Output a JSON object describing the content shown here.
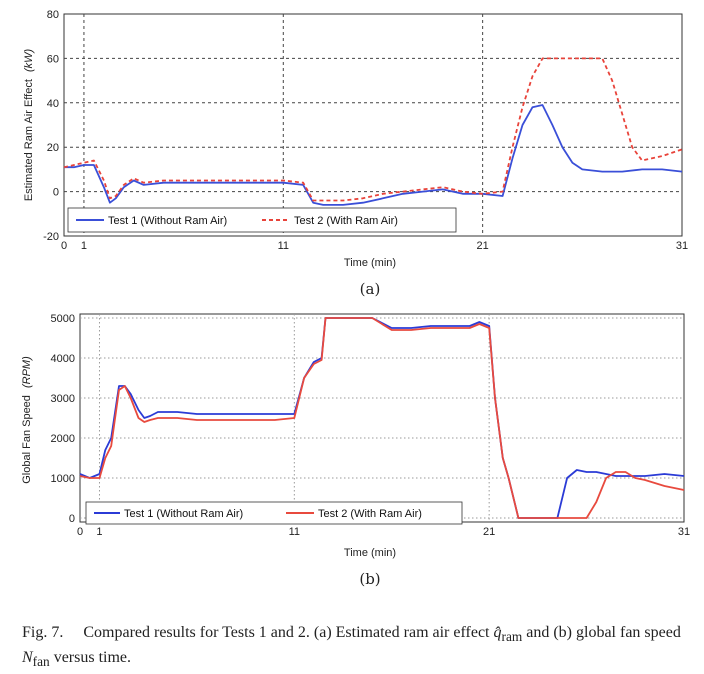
{
  "chart_data": [
    {
      "type": "line",
      "panel_label": "(a)",
      "xlabel": "Time (min)",
      "ylabel": "Estimated Ram Air Effect",
      "ylabel_unit": "(kW)",
      "xlim": [
        0,
        31
      ],
      "ylim": [
        -20,
        80
      ],
      "xticks": [
        0,
        1,
        11,
        21,
        31
      ],
      "yticks": [
        -20,
        0,
        20,
        40,
        60,
        80
      ],
      "grid": true,
      "legend": "bottom-left",
      "series": [
        {
          "name": "Test 1 (Without Ram Air)",
          "color": "#3a4fd8",
          "style": "solid",
          "x": [
            0,
            0.5,
            1,
            1.5,
            2,
            2.3,
            2.6,
            3,
            3.5,
            4,
            5,
            6,
            8,
            10,
            11,
            12,
            12.5,
            13,
            14,
            15,
            16,
            17,
            18,
            19,
            20,
            21,
            22,
            22.5,
            23,
            23.5,
            24,
            24.5,
            25,
            25.5,
            26,
            27,
            28,
            29,
            30,
            31
          ],
          "values": [
            11,
            11,
            12,
            12,
            2,
            -5,
            -3,
            2,
            5,
            3,
            4,
            4,
            4,
            4,
            4,
            3,
            -5,
            -6,
            -6,
            -5,
            -3,
            -1,
            0,
            1,
            -1,
            -1,
            -2,
            15,
            30,
            38,
            39,
            30,
            20,
            13,
            10,
            9,
            9,
            10,
            10,
            9
          ]
        },
        {
          "name": "Test 2 (With Ram Air)",
          "color": "#e8433a",
          "style": "dashed",
          "x": [
            0,
            0.5,
            1,
            1.5,
            2,
            2.3,
            2.6,
            3,
            3.5,
            4,
            5,
            6,
            8,
            10,
            11,
            12,
            12.5,
            13,
            14,
            15,
            16,
            17,
            18,
            19,
            20,
            21,
            22,
            22.5,
            23,
            23.5,
            24,
            24.5,
            25,
            26,
            27,
            27.5,
            28,
            28.5,
            29,
            30,
            31
          ],
          "values": [
            11,
            12,
            13,
            14,
            5,
            -3,
            -2,
            3,
            6,
            4,
            5,
            5,
            5,
            5,
            5,
            4,
            -4,
            -4,
            -4,
            -3,
            -1,
            0,
            1,
            2,
            0,
            -1,
            0,
            20,
            38,
            52,
            60,
            60,
            60,
            60,
            60,
            50,
            35,
            20,
            14,
            16,
            19
          ]
        }
      ]
    },
    {
      "type": "line",
      "panel_label": "(b)",
      "xlabel": "Time (min)",
      "ylabel": "Global Fan Speed",
      "ylabel_unit": "(RPM)",
      "xlim": [
        0,
        31
      ],
      "ylim": [
        -100,
        5100
      ],
      "xticks": [
        0,
        1,
        11,
        21,
        31
      ],
      "yticks": [
        0,
        1000,
        2000,
        3000,
        4000,
        5000
      ],
      "grid": true,
      "legend": "bottom-left",
      "series": [
        {
          "name": "Test 1 (Without Ram Air)",
          "color": "#2b3bd6",
          "style": "solid",
          "x": [
            0,
            0.5,
            1,
            1.3,
            1.6,
            2,
            2.3,
            2.6,
            3,
            3.3,
            3.6,
            4,
            5,
            6,
            8,
            10,
            11,
            11.5,
            12,
            12.4,
            12.6,
            13,
            14,
            15,
            16,
            17,
            18,
            19,
            20,
            20.5,
            21,
            21.3,
            21.7,
            22,
            22.5,
            23,
            23.5,
            24,
            24.5,
            25,
            25.5,
            26,
            26.5,
            27,
            27.5,
            28,
            29,
            30,
            31
          ],
          "values": [
            1100,
            1000,
            1100,
            1700,
            2000,
            3300,
            3300,
            3100,
            2700,
            2500,
            2550,
            2650,
            2650,
            2600,
            2600,
            2600,
            2600,
            3500,
            3900,
            4000,
            5000,
            5000,
            5000,
            5000,
            4750,
            4750,
            4800,
            4800,
            4800,
            4900,
            4800,
            3000,
            1500,
            1000,
            0,
            0,
            0,
            0,
            0,
            1000,
            1200,
            1150,
            1150,
            1100,
            1050,
            1050,
            1050,
            1100,
            1050
          ]
        },
        {
          "name": "Test 2 (With Ram Air)",
          "color": "#e84a3e",
          "style": "solid",
          "x": [
            0,
            0.5,
            1,
            1.3,
            1.6,
            2,
            2.3,
            2.6,
            3,
            3.3,
            3.6,
            4,
            5,
            6,
            8,
            10,
            11,
            11.5,
            12,
            12.4,
            12.6,
            13,
            14,
            15,
            16,
            17,
            18,
            19,
            20,
            20.5,
            21,
            21.3,
            21.7,
            22,
            22.5,
            23,
            24,
            25,
            26,
            26.5,
            27,
            27.5,
            28,
            28.5,
            29,
            30,
            31
          ],
          "values": [
            1050,
            1000,
            1000,
            1500,
            1800,
            3200,
            3300,
            3000,
            2500,
            2400,
            2450,
            2500,
            2500,
            2450,
            2450,
            2450,
            2500,
            3500,
            3850,
            3950,
            5000,
            5000,
            5000,
            5000,
            4700,
            4700,
            4750,
            4750,
            4750,
            4850,
            4750,
            3000,
            1500,
            1000,
            0,
            0,
            0,
            0,
            0,
            400,
            1000,
            1150,
            1150,
            1000,
            950,
            800,
            700
          ]
        }
      ]
    }
  ],
  "caption": {
    "fig_label": "Fig. 7.",
    "text_1": "Compared results for Tests 1 and 2. (a) Estimated ram air effect",
    "symbol_1": "q̂",
    "symbol_1_sub": "ram",
    "text_2": "and (b) global fan speed",
    "symbol_2": "N",
    "symbol_2_sub": "fan",
    "text_3": "versus time."
  }
}
